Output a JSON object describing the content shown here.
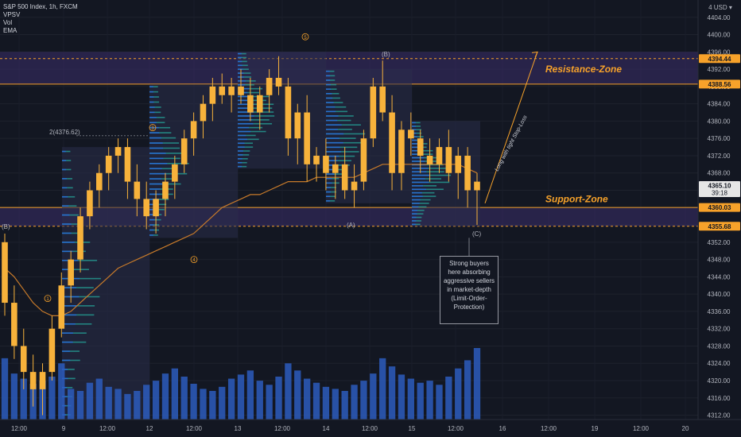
{
  "legend": {
    "symbol": "S&P 500 Index, 1h, FXCM",
    "studies": [
      "VPSV",
      "Vol",
      "EMA"
    ]
  },
  "currency": "USD",
  "colors": {
    "background": "#131722",
    "candle_up": "#f7b23b",
    "candle_down": "#f7b23b",
    "zone_line": "#f7a22a",
    "zone_fill": "#3b2d6a",
    "volume": "#2d5cbd",
    "ema": "#c77a2a",
    "profile": "#26a69a"
  },
  "chart_data": {
    "type": "candlestick",
    "title": "S&P 500 Index, 1h, FXCM",
    "y_axis": {
      "ticks": [
        4404,
        4400,
        4396,
        4392,
        4388,
        4384,
        4380,
        4376,
        4372,
        4368,
        4364,
        4360,
        4356,
        4352,
        4348,
        4344,
        4340,
        4336,
        4332,
        4328,
        4324,
        4320,
        4316,
        4312
      ],
      "range": [
        4311,
        4408
      ]
    },
    "x_axis": {
      "ticks": [
        "12:00",
        "9",
        "12:00",
        "12",
        "12:00",
        "13",
        "12:00",
        "14",
        "12:00",
        "15",
        "12:00",
        "16",
        "12:00",
        "19",
        "12:00",
        "20"
      ]
    },
    "price_labels": [
      {
        "value": "4394.44",
        "kind": "dashed"
      },
      {
        "value": "4388.56",
        "kind": "solid"
      },
      {
        "value": "4365.10",
        "kind": "current",
        "countdown": "39:18"
      },
      {
        "value": "4360.03",
        "kind": "solid"
      },
      {
        "value": "4355.68",
        "kind": "dashed"
      }
    ],
    "zones": [
      {
        "label": "Resistance-Zone",
        "top": 4396,
        "bottom": 4388.56
      },
      {
        "label": "Support-Zone",
        "top": 4360.03,
        "bottom": 4355.68
      }
    ],
    "annotations": [
      "2(4376.62)",
      "(B)",
      "(A)",
      "(C)",
      "(B)"
    ],
    "wave_labels": [
      "1",
      "2",
      "3",
      "4",
      "5"
    ],
    "diagonal_text": "Long with tight Stop-Loss",
    "note": [
      "Strong buyers",
      "here absorbing",
      "aggressive sellers",
      "in market-depth",
      "(Limit-Order-",
      "Protection)"
    ],
    "candles": [
      [
        4352,
        4354,
        4335,
        4338
      ],
      [
        4338,
        4342,
        4325,
        4328
      ],
      [
        4328,
        4332,
        4318,
        4322
      ],
      [
        4322,
        4326,
        4314,
        4318
      ],
      [
        4318,
        4324,
        4312,
        4322
      ],
      [
        4322,
        4335,
        4320,
        4332
      ],
      [
        4332,
        4345,
        4330,
        4342
      ],
      [
        4342,
        4350,
        4338,
        4348
      ],
      [
        4348,
        4360,
        4345,
        4358
      ],
      [
        4358,
        4366,
        4355,
        4364
      ],
      [
        4364,
        4370,
        4360,
        4368
      ],
      [
        4368,
        4374,
        4364,
        4372
      ],
      [
        4372,
        4376,
        4368,
        4374
      ],
      [
        4374,
        4376,
        4362,
        4366
      ],
      [
        4366,
        4370,
        4358,
        4362
      ],
      [
        4362,
        4366,
        4355,
        4358
      ],
      [
        4358,
        4364,
        4354,
        4362
      ],
      [
        4362,
        4368,
        4358,
        4366
      ],
      [
        4366,
        4372,
        4362,
        4370
      ],
      [
        4370,
        4378,
        4368,
        4376
      ],
      [
        4376,
        4382,
        4372,
        4380
      ],
      [
        4380,
        4386,
        4376,
        4384
      ],
      [
        4384,
        4390,
        4380,
        4388
      ],
      [
        4388,
        4391,
        4384,
        4386
      ],
      [
        4386,
        4390,
        4382,
        4388
      ],
      [
        4388,
        4392,
        4384,
        4386
      ],
      [
        4386,
        4390,
        4380,
        4382
      ],
      [
        4382,
        4388,
        4378,
        4386
      ],
      [
        4386,
        4392,
        4382,
        4390
      ],
      [
        4390,
        4395,
        4386,
        4388
      ],
      [
        4388,
        4390,
        4372,
        4376
      ],
      [
        4376,
        4384,
        4370,
        4382
      ],
      [
        4382,
        4386,
        4366,
        4370
      ],
      [
        4370,
        4374,
        4366,
        4372
      ],
      [
        4372,
        4376,
        4364,
        4368
      ],
      [
        4368,
        4372,
        4362,
        4370
      ],
      [
        4370,
        4374,
        4362,
        4364
      ],
      [
        4364,
        4370,
        4360,
        4366
      ],
      [
        4366,
        4378,
        4364,
        4376
      ],
      [
        4376,
        4390,
        4374,
        4388
      ],
      [
        4388,
        4394,
        4380,
        4382
      ],
      [
        4382,
        4386,
        4364,
        4368
      ],
      [
        4368,
        4380,
        4364,
        4378
      ],
      [
        4378,
        4382,
        4372,
        4376
      ],
      [
        4376,
        4378,
        4368,
        4372
      ],
      [
        4372,
        4376,
        4366,
        4370
      ],
      [
        4370,
        4376,
        4368,
        4374
      ],
      [
        4374,
        4378,
        4366,
        4368
      ],
      [
        4368,
        4374,
        4362,
        4372
      ],
      [
        4372,
        4374,
        4360,
        4364
      ],
      [
        4364,
        4368,
        4356,
        4366
      ]
    ],
    "volumes": [
      60,
      45,
      40,
      35,
      38,
      42,
      55,
      30,
      28,
      36,
      40,
      32,
      30,
      25,
      28,
      34,
      38,
      45,
      50,
      42,
      35,
      30,
      28,
      32,
      40,
      44,
      48,
      38,
      34,
      42,
      55,
      48,
      40,
      36,
      32,
      30,
      28,
      34,
      38,
      45,
      60,
      52,
      44,
      40,
      36,
      38,
      34,
      42,
      50,
      58,
      70
    ],
    "ema": [
      4346,
      4344,
      4341,
      4338,
      4336,
      4335,
      4335,
      4336,
      4338,
      4340,
      4342,
      4344,
      4346,
      4347,
      4348,
      4349,
      4350,
      4351,
      4352,
      4353,
      4354,
      4356,
      4358,
      4360,
      4361,
      4362,
      4363,
      4363,
      4364,
      4365,
      4366,
      4366,
      4366,
      4367,
      4367,
      4367,
      4367,
      4367,
      4368,
      4369,
      4370,
      4370,
      4370,
      4370,
      4370,
      4370,
      4370,
      4370,
      4370,
      4369,
      4368
    ]
  }
}
